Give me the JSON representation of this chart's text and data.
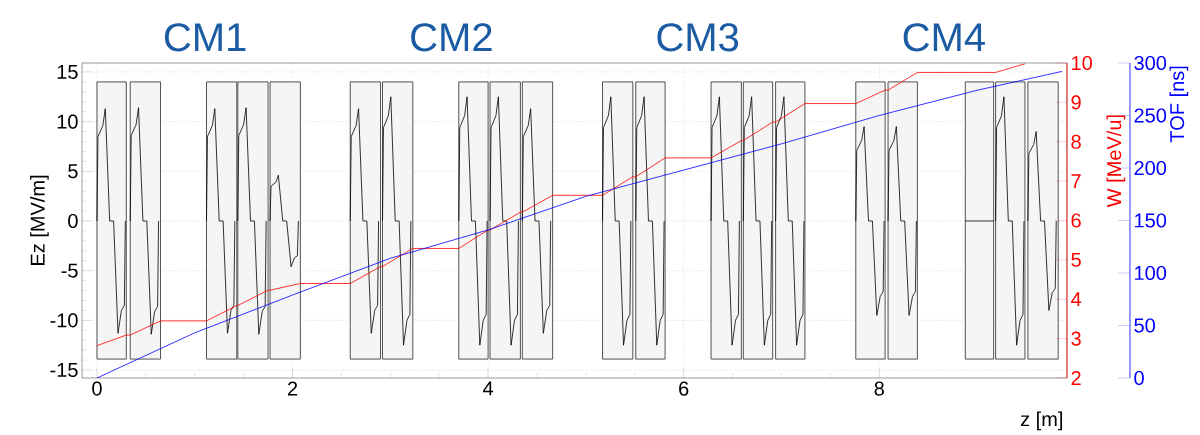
{
  "chart_data": {
    "type": "line",
    "xlabel": "z [m]",
    "ylabel": "Ez [MV/m]",
    "y2label": "W [MeV/u]",
    "y3label": "TOF [ns]",
    "xlim": [
      -0.153,
      9.92
    ],
    "xticks": [
      0,
      2,
      4,
      6,
      8
    ],
    "ylim": [
      -15.8,
      15.9
    ],
    "yticks": [
      -15,
      -10,
      -5,
      0,
      5,
      10,
      15
    ],
    "y2lim": [
      2,
      10
    ],
    "y2ticks": [
      2,
      3,
      4,
      5,
      6,
      7,
      8,
      9,
      10
    ],
    "y3lim": [
      0,
      300
    ],
    "y3ticks": [
      0,
      50,
      100,
      150,
      200,
      250,
      300
    ],
    "grid": true,
    "marker": "none",
    "line_style": "solid",
    "annotations": [
      "CM1",
      "CM2",
      "CM3",
      "CM4"
    ],
    "bands": [
      {
        "axis": "x",
        "from": 0.0,
        "to": 0.3
      },
      {
        "axis": "x",
        "from": 0.34,
        "to": 0.65
      },
      {
        "axis": "x",
        "from": 1.12,
        "to": 1.43
      },
      {
        "axis": "x",
        "from": 1.44,
        "to": 1.75
      },
      {
        "axis": "x",
        "from": 1.77,
        "to": 2.08
      },
      {
        "axis": "x",
        "from": 2.59,
        "to": 2.9
      },
      {
        "axis": "x",
        "from": 2.92,
        "to": 3.23
      },
      {
        "axis": "x",
        "from": 3.7,
        "to": 4.0
      },
      {
        "axis": "x",
        "from": 4.02,
        "to": 4.33
      },
      {
        "axis": "x",
        "from": 4.35,
        "to": 4.66
      },
      {
        "axis": "x",
        "from": 5.17,
        "to": 5.48
      },
      {
        "axis": "x",
        "from": 5.51,
        "to": 5.81
      },
      {
        "axis": "x",
        "from": 6.28,
        "to": 6.59
      },
      {
        "axis": "x",
        "from": 6.61,
        "to": 6.91
      },
      {
        "axis": "x",
        "from": 6.94,
        "to": 7.24
      },
      {
        "axis": "x",
        "from": 7.76,
        "to": 8.06
      },
      {
        "axis": "x",
        "from": 8.09,
        "to": 8.39
      },
      {
        "axis": "x",
        "from": 8.88,
        "to": 9.17
      },
      {
        "axis": "x",
        "from": 9.19,
        "to": 9.49
      },
      {
        "axis": "x",
        "from": 9.52,
        "to": 9.83
      }
    ],
    "series": [
      {
        "color": "#000000",
        "axis": "y",
        "x": [
          0,
          0.01,
          0.06,
          0.085,
          0.13,
          0.17,
          0.215,
          0.25,
          0.28,
          0.29,
          0.3,
          0.34,
          0.35,
          0.4,
          0.425,
          0.47,
          0.51,
          0.555,
          0.59,
          0.62,
          0.63,
          0.64,
          1.12,
          1.13,
          1.18,
          1.205,
          1.25,
          1.29,
          1.335,
          1.37,
          1.4,
          1.41,
          1.42,
          1.44,
          1.45,
          1.5,
          1.525,
          1.57,
          1.61,
          1.655,
          1.69,
          1.72,
          1.73,
          1.75,
          1.77,
          1.78,
          1.83,
          1.855,
          1.9,
          1.94,
          1.985,
          2.02,
          2.05,
          2.06,
          2.07,
          2.59,
          2.6,
          2.65,
          2.675,
          2.72,
          2.76,
          2.805,
          2.84,
          2.87,
          2.88,
          2.89,
          2.92,
          2.93,
          2.98,
          3.005,
          3.05,
          3.09,
          3.135,
          3.17,
          3.2,
          3.21,
          3.22,
          3.7,
          3.71,
          3.76,
          3.785,
          3.83,
          3.87,
          3.915,
          3.95,
          3.98,
          3.99,
          4.0,
          4.02,
          4.03,
          4.08,
          4.105,
          4.15,
          4.19,
          4.235,
          4.27,
          4.3,
          4.31,
          4.32,
          4.35,
          4.36,
          4.41,
          4.435,
          4.48,
          4.52,
          4.565,
          4.6,
          4.63,
          4.64,
          4.65,
          5.17,
          5.18,
          5.23,
          5.255,
          5.3,
          5.34,
          5.385,
          5.42,
          5.45,
          5.46,
          5.47,
          5.51,
          5.52,
          5.57,
          5.595,
          5.64,
          5.68,
          5.725,
          5.76,
          5.79,
          5.8,
          5.81,
          6.28,
          6.29,
          6.34,
          6.365,
          6.41,
          6.45,
          6.495,
          6.53,
          6.56,
          6.57,
          6.58,
          6.61,
          6.62,
          6.67,
          6.695,
          6.74,
          6.78,
          6.825,
          6.86,
          6.89,
          6.9,
          6.91,
          6.94,
          6.95,
          7.0,
          7.025,
          7.07,
          7.11,
          7.155,
          7.19,
          7.22,
          7.23,
          7.24,
          7.76,
          7.77,
          7.82,
          7.845,
          7.89,
          7.93,
          7.975,
          8.01,
          8.04,
          8.05,
          8.06,
          8.09,
          8.1,
          8.15,
          8.175,
          8.22,
          8.26,
          8.305,
          8.34,
          8.37,
          8.38,
          8.39,
          8.88,
          9.17,
          9.18,
          9.19,
          9.2,
          9.25,
          9.275,
          9.32,
          9.36,
          9.405,
          9.44,
          9.47,
          9.48,
          9.49,
          9.52,
          9.53,
          9.58,
          9.605,
          9.65,
          9.69,
          9.735,
          9.77,
          9.8,
          9.81
        ],
        "values": [
          0,
          8.5,
          9.6,
          11.3,
          0,
          0,
          -11.3,
          -9,
          -8.5,
          0,
          null,
          0,
          8.6,
          9.7,
          11.4,
          0,
          0,
          -11.4,
          -9.1,
          -8.6,
          0,
          null,
          0,
          8.5,
          9.6,
          11.3,
          0,
          0,
          -11.3,
          -9,
          -8.5,
          0,
          null,
          0,
          8.6,
          9.7,
          11.4,
          0,
          0,
          -11.4,
          -9.1,
          -8.6,
          0,
          null,
          0,
          3.5,
          3.9,
          4.6,
          0,
          0,
          -4.6,
          -3.7,
          -3.5,
          0,
          null,
          0,
          8.5,
          9.6,
          11.3,
          0,
          0,
          -11.3,
          -9,
          -8.5,
          0,
          null,
          0,
          9.4,
          10.6,
          12.5,
          0,
          0,
          -12.5,
          -10,
          -9.4,
          0,
          null,
          0,
          9.4,
          10.6,
          12.5,
          0,
          0,
          -12.5,
          -10,
          -9.4,
          0,
          null,
          0,
          9.4,
          10.6,
          12.5,
          0,
          0,
          -12.5,
          -10,
          -9.4,
          0,
          null,
          0,
          8.5,
          9.6,
          11.3,
          0,
          0,
          -11.3,
          -9,
          -8.5,
          0,
          null,
          0,
          9.4,
          10.6,
          12.5,
          0,
          0,
          -12.5,
          -10,
          -9.4,
          0,
          null,
          0,
          9.4,
          10.6,
          12.5,
          0,
          0,
          -12.5,
          -10,
          -9.4,
          0,
          null,
          0,
          9.4,
          10.6,
          12.5,
          0,
          0,
          -12.5,
          -10,
          -9.4,
          0,
          null,
          0,
          9.4,
          10.6,
          12.5,
          0,
          0,
          -12.5,
          -10,
          -9.4,
          0,
          null,
          0,
          9.4,
          10.6,
          12.5,
          0,
          0,
          -12.5,
          -10,
          -9.4,
          0,
          null,
          0,
          7.1,
          8.1,
          9.5,
          0,
          0,
          -9.5,
          -7.6,
          -7.1,
          0,
          null,
          0,
          7.1,
          8.1,
          9.5,
          0,
          0,
          -9.5,
          -7.6,
          -7.1,
          0,
          null,
          0,
          0,
          null,
          0,
          9.4,
          10.6,
          12.5,
          0,
          0,
          -12.5,
          -10,
          -9.4,
          0,
          null,
          0,
          6.8,
          7.7,
          9,
          0,
          0,
          -9,
          -7.2,
          -6.8,
          0
        ]
      },
      {
        "color": "#ff0000",
        "axis": "y2",
        "x": [
          0,
          0.3,
          0.34,
          0.65,
          1.12,
          1.43,
          1.44,
          1.75,
          1.77,
          2.08,
          2.59,
          2.9,
          2.92,
          3.23,
          3.7,
          4.0,
          4.02,
          4.33,
          4.35,
          4.66,
          5.17,
          5.48,
          5.51,
          5.81,
          6.28,
          6.59,
          6.61,
          6.91,
          6.94,
          7.24,
          7.76,
          8.06,
          8.09,
          8.39,
          9.19,
          9.49
        ],
        "values": [
          2.82,
          3.09,
          3.09,
          3.45,
          3.45,
          3.84,
          3.84,
          4.23,
          4.23,
          4.4,
          4.4,
          4.83,
          4.83,
          5.29,
          5.29,
          5.76,
          5.76,
          6.21,
          6.21,
          6.64,
          6.64,
          7.11,
          7.11,
          7.59,
          7.59,
          8.03,
          8.03,
          8.5,
          8.5,
          8.97,
          8.97,
          9.31,
          9.31,
          9.76,
          9.76,
          9.98
        ]
      },
      {
        "color": "#0000ff",
        "axis": "y3",
        "x": [
          0,
          1,
          2,
          3,
          4,
          5,
          6,
          7,
          8,
          9,
          9.87
        ],
        "values": [
          0,
          43,
          79,
          114,
          141,
          173,
          198,
          223,
          250,
          274,
          292
        ]
      }
    ]
  }
}
